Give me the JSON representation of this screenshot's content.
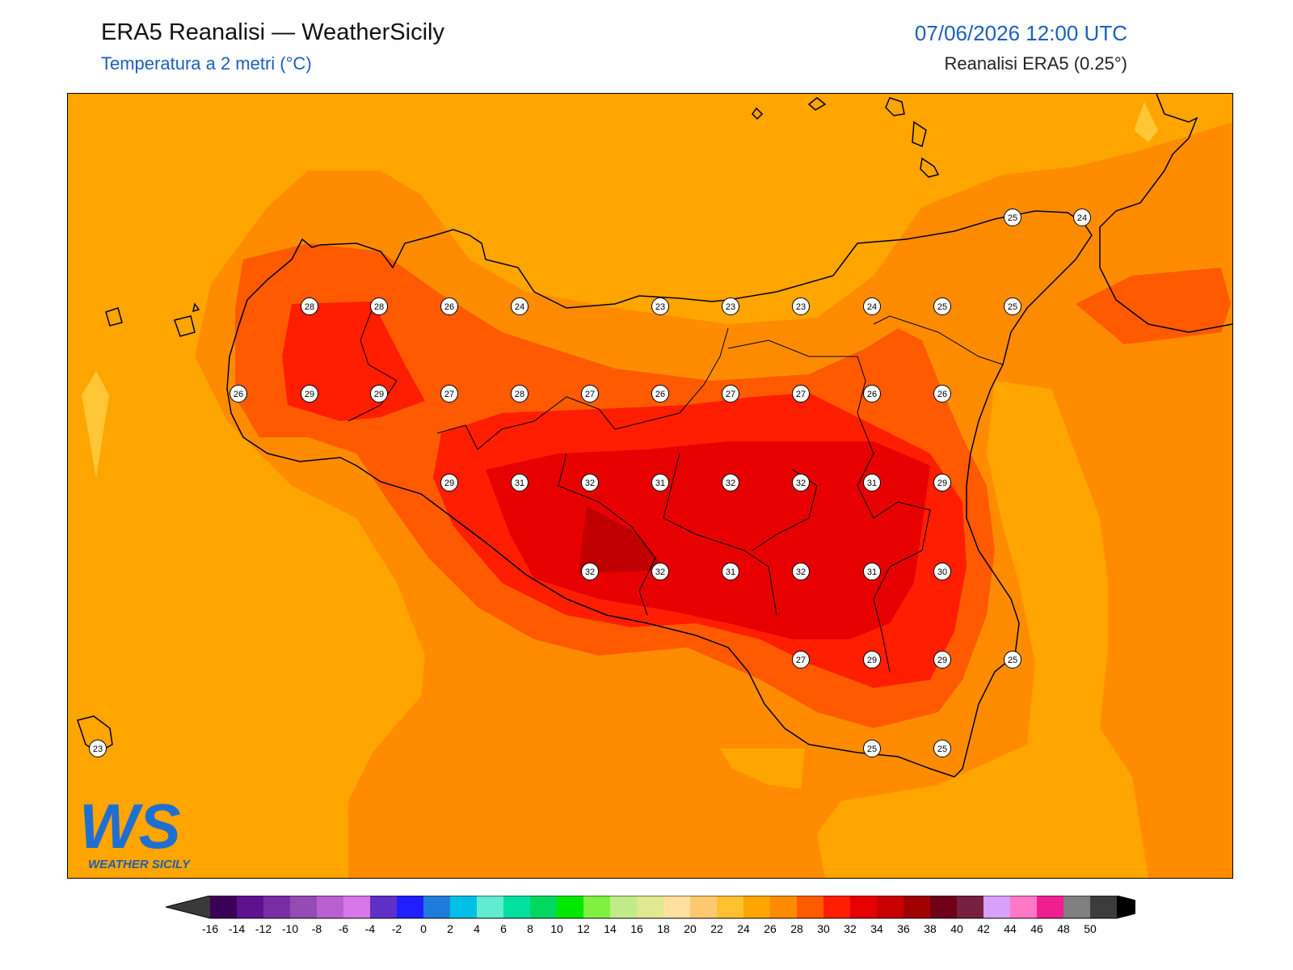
{
  "header": {
    "title": "ERA5 Reanalisi — WeatherSicily",
    "subtitle": "Temperatura a 2 metri (°C)",
    "datetime": "07/06/2026 12:00 UTC",
    "source": "Reanalisi ERA5 (0.25°)"
  },
  "logo": {
    "text_main": "WS",
    "text_sub": "WEATHER SICILY"
  },
  "colors": {
    "t22": "#ffa500",
    "t24": "#ff8c00",
    "t26": "#ff5a00",
    "t28": "#ff1e00",
    "t30": "#e60000",
    "t32": "#c80000",
    "t18": "#ffd24a"
  },
  "stations": [
    {
      "v": "28"
    },
    {
      "v": "28"
    },
    {
      "v": "26"
    },
    {
      "v": "24"
    },
    {
      "v": "23"
    },
    {
      "v": "23"
    },
    {
      "v": "23"
    },
    {
      "v": "24"
    },
    {
      "v": "25"
    },
    {
      "v": "25"
    },
    {
      "v": "25"
    },
    {
      "v": "24"
    },
    {
      "v": "26"
    },
    {
      "v": "29"
    },
    {
      "v": "29"
    },
    {
      "v": "27"
    },
    {
      "v": "28"
    },
    {
      "v": "27"
    },
    {
      "v": "26"
    },
    {
      "v": "27"
    },
    {
      "v": "27"
    },
    {
      "v": "26"
    },
    {
      "v": "26"
    },
    {
      "v": "29"
    },
    {
      "v": "31"
    },
    {
      "v": "32"
    },
    {
      "v": "31"
    },
    {
      "v": "32"
    },
    {
      "v": "32"
    },
    {
      "v": "31"
    },
    {
      "v": "29"
    },
    {
      "v": "32"
    },
    {
      "v": "32"
    },
    {
      "v": "31"
    },
    {
      "v": "32"
    },
    {
      "v": "31"
    },
    {
      "v": "30"
    },
    {
      "v": "27"
    },
    {
      "v": "29"
    },
    {
      "v": "29"
    },
    {
      "v": "25"
    },
    {
      "v": "23"
    },
    {
      "v": "25"
    },
    {
      "v": "25"
    }
  ],
  "colorbar": {
    "labels": [
      "-16",
      "-14",
      "-12",
      "-10",
      "-8",
      "-6",
      "-4",
      "-2",
      "0",
      "2",
      "4",
      "6",
      "8",
      "10",
      "12",
      "14",
      "16",
      "18",
      "20",
      "22",
      "24",
      "26",
      "28",
      "30",
      "32",
      "34",
      "36",
      "38",
      "40",
      "42",
      "44",
      "46",
      "48",
      "50"
    ],
    "colors": [
      "#3d0058",
      "#5e1290",
      "#7a2ca6",
      "#944bb4",
      "#b960d0",
      "#d878e8",
      "#6030c8",
      "#2020ff",
      "#1e7ddc",
      "#00c0e8",
      "#60ecd0",
      "#00e0a0",
      "#00d860",
      "#00e800",
      "#80f040",
      "#c0ec88",
      "#e0e890",
      "#ffe0a0",
      "#ffc870",
      "#ffc030",
      "#ffa500",
      "#ff8c00",
      "#ff5a00",
      "#ff1e00",
      "#e60000",
      "#c80000",
      "#a00000",
      "#700018",
      "#782040",
      "#d8a0f8",
      "#ff78c8",
      "#f01e90",
      "#808080",
      "#3c3c3c"
    ]
  }
}
